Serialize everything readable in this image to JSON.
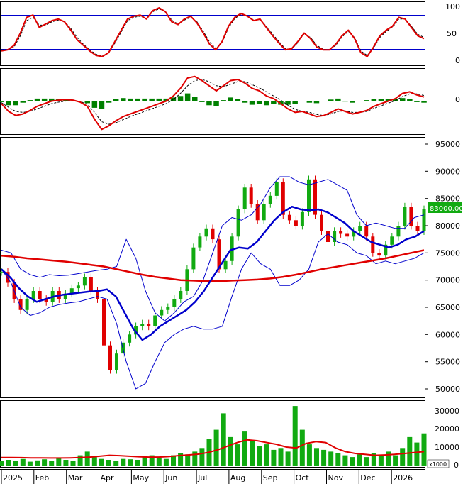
{
  "chart_data": {
    "type": "stock_chart",
    "months": [
      "2025",
      "Feb",
      "Mar",
      "Apr",
      "May",
      "Jun",
      "Jul",
      "Aug",
      "Sep",
      "Oct",
      "Nov",
      "Dec",
      "2026"
    ],
    "panels": [
      {
        "id": "stochastic",
        "type": "line",
        "ylim": [
          0,
          100
        ],
        "yticks": [
          "100",
          "50",
          "0"
        ],
        "reference_lines": [
          80,
          20
        ],
        "series": [
          {
            "name": "",
            "color": "#e00000",
            "values": [
              18,
              20,
              28,
              50,
              78,
              82,
              60,
              66,
              72,
              75,
              70,
              55,
              38,
              28,
              18,
              10,
              8,
              15,
              35,
              55,
              75,
              80,
              82,
              75,
              90,
              95,
              88,
              70,
              65,
              75,
              80,
              68,
              50,
              30,
              20,
              35,
              62,
              78,
              85,
              80,
              72,
              75,
              60,
              45,
              32,
              20,
              22,
              35,
              50,
              40,
              25,
              20,
              20,
              30,
              45,
              55,
              40,
              15,
              8,
              25,
              45,
              55,
              62,
              78,
              75,
              60,
              45,
              40
            ]
          },
          {
            "name": "",
            "color": "#000000",
            "values": [
              20,
              20,
              25,
              45,
              72,
              78,
              64,
              64,
              70,
              73,
              71,
              58,
              42,
              30,
              20,
              12,
              9,
              14,
              32,
              52,
              72,
              78,
              80,
              76,
              88,
              93,
              88,
              73,
              66,
              73,
              78,
              70,
              53,
              34,
              22,
              33,
              59,
              76,
              83,
              81,
              73,
              74,
              62,
              48,
              35,
              22,
              21,
              33,
              48,
              42,
              28,
              21,
              20,
              28,
              43,
              53,
              42,
              18,
              10,
              23,
              42,
              53,
              60,
              75,
              75,
              62,
              48,
              42
            ]
          }
        ]
      },
      {
        "id": "macd",
        "type": "line+histogram",
        "yticks": [
          "0"
        ],
        "series": [
          {
            "name": "",
            "color": "#e00000",
            "values": [
              -5,
              -20,
              -28,
              -25,
              -18,
              -10,
              -5,
              0,
              2,
              3,
              2,
              -2,
              -10,
              -35,
              -55,
              -48,
              -38,
              -30,
              -25,
              -20,
              -15,
              -10,
              -5,
              0,
              10,
              25,
              45,
              48,
              40,
              30,
              20,
              30,
              40,
              42,
              35,
              25,
              20,
              10,
              5,
              -5,
              -15,
              -22,
              -20,
              -25,
              -30,
              -28,
              -22,
              -15,
              -20,
              -25,
              -22,
              -18,
              -10,
              -5,
              0,
              5,
              15,
              18,
              12,
              8
            ]
          },
          {
            "name": "",
            "color": "#000000",
            "values": [
              -3,
              -12,
              -20,
              -22,
              -20,
              -15,
              -10,
              -5,
              -2,
              0,
              1,
              -1,
              -6,
              -22,
              -40,
              -45,
              -42,
              -36,
              -30,
              -25,
              -20,
              -15,
              -10,
              -5,
              3,
              15,
              30,
              40,
              42,
              38,
              30,
              28,
              33,
              38,
              38,
              32,
              26,
              18,
              10,
              2,
              -8,
              -16,
              -20,
              -22,
              -26,
              -28,
              -25,
              -20,
              -19,
              -22,
              -22,
              -20,
              -14,
              -9,
              -4,
              1,
              9,
              14,
              14,
              11
            ]
          },
          {
            "name": "",
            "color": "#008000",
            "values": [
              -2,
              -8,
              -8,
              -3,
              2,
              5,
              5,
              5,
              4,
              3,
              1,
              -1,
              -4,
              -13,
              -15,
              -3,
              4,
              6,
              5,
              5,
              5,
              5,
              5,
              5,
              7,
              10,
              15,
              8,
              -2,
              -8,
              -10,
              2,
              7,
              4,
              -3,
              -7,
              -6,
              -8,
              -5,
              -7,
              -7,
              -6,
              0,
              -3,
              -4,
              0,
              3,
              5,
              -1,
              -3,
              0,
              2,
              4,
              4,
              4,
              4,
              6,
              4,
              -2,
              -3
            ]
          }
        ]
      },
      {
        "id": "price",
        "type": "candlestick",
        "ylim": [
          48500,
          96000
        ],
        "yticks": [
          "95000",
          "90000",
          "85000",
          "80000",
          "75000",
          "70000",
          "65000",
          "60000",
          "55000",
          "50000"
        ],
        "last_price_label": "83000.00",
        "candles_close": [
          71500,
          69500,
          66500,
          64500,
          66500,
          68000,
          66500,
          66000,
          68000,
          66500,
          67500,
          68500,
          69000,
          70500,
          68000,
          66500,
          58000,
          53500,
          56500,
          58500,
          60000,
          61500,
          62000,
          61500,
          63500,
          64500,
          65000,
          66500,
          68000,
          72000,
          76000,
          78000,
          79500,
          77500,
          72000,
          73500,
          78000,
          83000,
          87000,
          84000,
          81000,
          84000,
          85500,
          88000,
          82000,
          81000,
          80000,
          82500,
          88500,
          82000,
          79000,
          77000,
          79000,
          78500,
          78000,
          79000,
          80000,
          78000,
          75000,
          74500,
          76500,
          78000,
          80000,
          83500,
          80000,
          79000,
          83000
        ],
        "series": [
          {
            "name": "",
            "color": "#0000cc",
            "values": [
              72000,
              70500,
              68500,
              67000,
              66000,
              66500,
              67000,
              67300,
              67500,
              67700,
              67900,
              68000,
              68300,
              67000,
              64000,
              61000,
              59000,
              60000,
              61500,
              62500,
              63500,
              64500,
              66000,
              68000,
              70500,
              73000,
              75500,
              76000,
              75800,
              77000,
              79000,
              81000,
              82500,
              83500,
              83000,
              82800,
              83000,
              82500,
              81500,
              80500,
              79000,
              78000,
              77000,
              76500,
              76000,
              76500,
              77500,
              78000,
              79000
            ]
          },
          {
            "name": "",
            "color": "#0000cc",
            "values": [
              75500,
              75000,
              72000,
              71000,
              70500,
              71000,
              70800,
              70900,
              71200,
              71500,
              71800,
              72000,
              72500,
              77500,
              74000,
              68000,
              64000,
              62500,
              64000,
              66000,
              67000,
              70000,
              75000,
              80000,
              81500,
              81000,
              82000,
              84000,
              87000,
              89000,
              89000,
              88000,
              87500,
              88000,
              88500,
              87500,
              86500,
              82000,
              80000,
              80500,
              80000,
              79500,
              79500,
              81500,
              82000
            ]
          },
          {
            "name": "",
            "color": "#0000cc",
            "values": [
              72000,
              69500,
              65000,
              63500,
              64000,
              65000,
              65500,
              65800,
              66000,
              66500,
              67000,
              66500,
              62000,
              55000,
              50000,
              51000,
              55000,
              58500,
              60000,
              61000,
              61500,
              61000,
              61000,
              61500,
              67000,
              72000,
              75000,
              73000,
              72000,
              69000,
              69000,
              70000,
              72000,
              77000,
              78500,
              77000,
              76500,
              75000,
              74500,
              73000,
              73500,
              73000,
              73500,
              74000,
              75000
            ]
          },
          {
            "name": "",
            "color": "#e00000",
            "values": [
              74500,
              74300,
              74000,
              73800,
              73600,
              73400,
              73100,
              72800,
              72500,
              72000,
              71500,
              71000,
              70600,
              70300,
              70000,
              69900,
              69800,
              69800,
              69900,
              70000,
              70100,
              70300,
              70600,
              71000,
              71500,
              72000,
              72400,
              72800,
              73200,
              73600,
              74000,
              74500,
              75000,
              75500
            ]
          }
        ]
      },
      {
        "id": "volume",
        "type": "bar",
        "ylim": [
          0,
          35000
        ],
        "yticks": [
          "30000",
          "20000",
          "10000",
          "0"
        ],
        "unit_label": "x1000",
        "values": [
          3000,
          3500,
          2800,
          4000,
          2500,
          3200,
          3800,
          3000,
          4500,
          3500,
          3000,
          6000,
          8000,
          5000,
          4000,
          3500,
          3000,
          4000,
          3800,
          3500,
          5000,
          6000,
          4500,
          4000,
          6000,
          7000,
          6500,
          8000,
          10000,
          15000,
          20000,
          29000,
          16000,
          12000,
          19000,
          14000,
          11000,
          12000,
          9000,
          10000,
          8000,
          33000,
          20000,
          12000,
          10000,
          9000,
          8000,
          7000,
          6000,
          5000,
          6500,
          5000,
          7000,
          6000,
          8000,
          6000,
          10000,
          16000,
          13000,
          18000
        ],
        "series": [
          {
            "name": "",
            "color": "#e00000",
            "values": [
              4800,
              4800,
              4700,
              4600,
              4600,
              4500,
              4500,
              4600,
              4800,
              5000,
              5500,
              6000,
              5800,
              5500,
              5200,
              5000,
              5000,
              5300,
              5800,
              6200,
              6600,
              7500,
              9000,
              11000,
              13000,
              14500,
              14000,
              13000,
              12000,
              10500,
              10000,
              12500,
              13500,
              13000,
              10000,
              8000,
              7000,
              6500,
              6000,
              6200,
              6500,
              7000,
              7500,
              8000
            ]
          }
        ]
      }
    ]
  }
}
